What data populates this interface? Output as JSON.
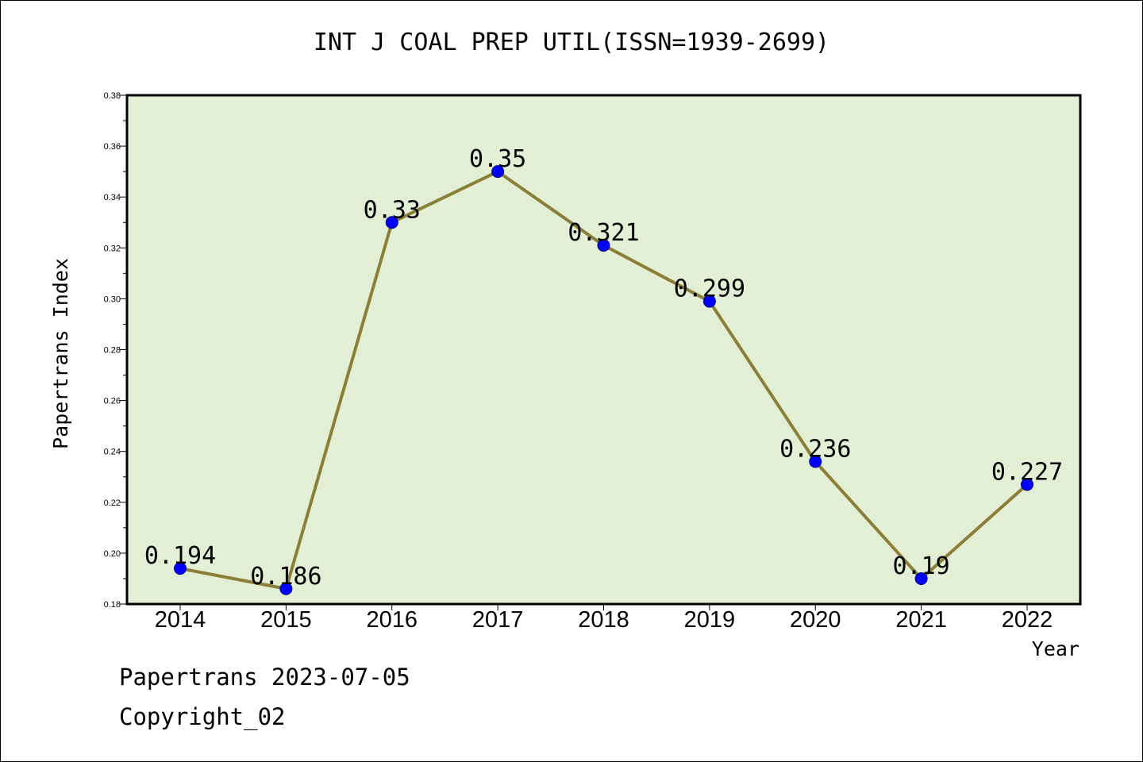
{
  "chart_data": {
    "type": "line",
    "title": "INT J COAL PREP UTIL(ISSN=1939-2699)",
    "xlabel": "Year",
    "ylabel": "Papertrans Index",
    "categories": [
      "2014",
      "2015",
      "2016",
      "2017",
      "2018",
      "2019",
      "2020",
      "2021",
      "2022"
    ],
    "values": [
      0.194,
      0.186,
      0.33,
      0.35,
      0.321,
      0.299,
      0.236,
      0.19,
      0.227
    ],
    "data_labels": [
      "0.194",
      "0.186",
      "0.33",
      "0.35",
      "0.321",
      "0.299",
      "0.236",
      "0.19",
      "0.227"
    ],
    "ylim": [
      0.18,
      0.38
    ],
    "yticks": [
      "0.18",
      "0.20",
      "0.22",
      "0.24",
      "0.26",
      "0.28",
      "0.30",
      "0.32",
      "0.34",
      "0.36",
      "0.38"
    ],
    "grid": false,
    "legend": "none",
    "colors": {
      "plot_background": "#e2efd5",
      "line": "#8b7f37",
      "marker": "#0000ff"
    }
  },
  "footer": {
    "line1": "Papertrans 2023-07-05",
    "line2": "Copyright_02"
  }
}
